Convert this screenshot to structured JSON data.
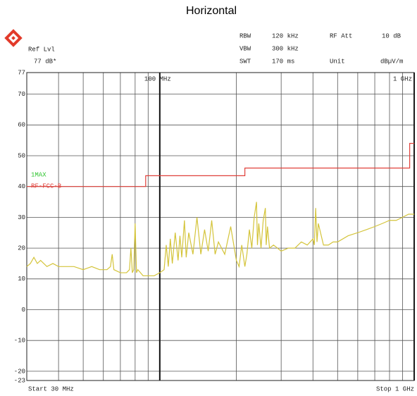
{
  "chart_data": {
    "type": "line",
    "title": "Horizontal",
    "header": {
      "ref_label": "Ref Lvl",
      "ref_value": "77 dB*",
      "rbw_label": "RBW",
      "rbw_value": "120 kHz",
      "vbw_label": "VBW",
      "vbw_value": "300 kHz",
      "swt_label": "SWT",
      "swt_value": "170 ms",
      "att_label": "RF Att",
      "att_value": "10 dB",
      "unit_label": "Unit",
      "unit_value": "dBµV/m"
    },
    "start_label": "Start 30 MHz",
    "stop_label": "Stop 1 GHz",
    "log_x": true,
    "xlim": [
      30,
      1000
    ],
    "xticks": [
      40,
      50,
      60,
      70,
      80,
      90,
      100,
      200,
      300,
      400,
      500,
      600,
      700,
      800,
      900
    ],
    "x_markers": [
      {
        "value": 100,
        "label": "100 MHz"
      },
      {
        "value": 1000,
        "label": "1 GHz"
      }
    ],
    "ylim": [
      -23,
      77
    ],
    "yticks": [
      -23,
      -20,
      -10,
      0,
      10,
      20,
      30,
      40,
      50,
      60,
      70,
      77
    ],
    "grid": true,
    "series": [
      {
        "name": "1MAX",
        "color": "#d4c43a",
        "x": [
          30,
          31,
          32,
          33,
          34,
          36,
          38,
          40,
          43,
          46,
          50,
          54,
          58,
          62,
          64,
          65,
          66,
          70,
          74,
          76,
          77,
          78,
          79,
          80,
          81,
          82,
          86,
          90,
          95,
          100,
          104,
          106,
          108,
          110,
          112,
          115,
          118,
          120,
          122,
          125,
          127,
          130,
          135,
          140,
          145,
          150,
          155,
          160,
          165,
          170,
          180,
          190,
          200,
          205,
          210,
          216,
          220,
          225,
          230,
          235,
          240,
          242,
          245,
          250,
          255,
          260,
          262,
          265,
          270,
          280,
          290,
          300,
          320,
          340,
          360,
          380,
          400,
          405,
          410,
          415,
          420,
          440,
          460,
          480,
          500,
          550,
          600,
          650,
          700,
          750,
          800,
          850,
          900,
          950,
          1000
        ],
        "values": [
          14,
          15,
          17,
          15,
          16,
          14,
          15,
          14,
          14,
          14,
          13,
          14,
          13,
          13,
          14,
          18,
          13,
          12,
          12,
          13,
          20,
          12,
          13,
          28,
          12,
          13,
          11,
          11,
          11,
          12,
          13,
          21,
          14,
          23,
          15,
          25,
          16,
          24,
          17,
          29,
          17,
          25,
          18,
          30,
          18,
          26,
          19,
          29,
          18,
          22,
          18,
          27,
          16,
          14,
          21,
          14,
          18,
          26,
          20,
          30,
          35,
          21,
          28,
          20,
          29,
          33,
          21,
          27,
          20,
          21,
          20,
          19,
          20,
          20,
          22,
          21,
          23,
          21,
          33,
          22,
          28,
          21,
          21,
          22,
          22,
          24,
          25,
          26,
          27,
          28,
          29,
          29,
          30,
          31,
          31
        ]
      },
      {
        "name": "RF-FCC-B",
        "color": "#e0403a",
        "x": [
          30,
          88,
          88,
          216,
          216,
          960,
          960,
          1000
        ],
        "values": [
          40,
          40,
          43.5,
          43.5,
          46,
          46,
          54,
          54
        ]
      }
    ]
  }
}
